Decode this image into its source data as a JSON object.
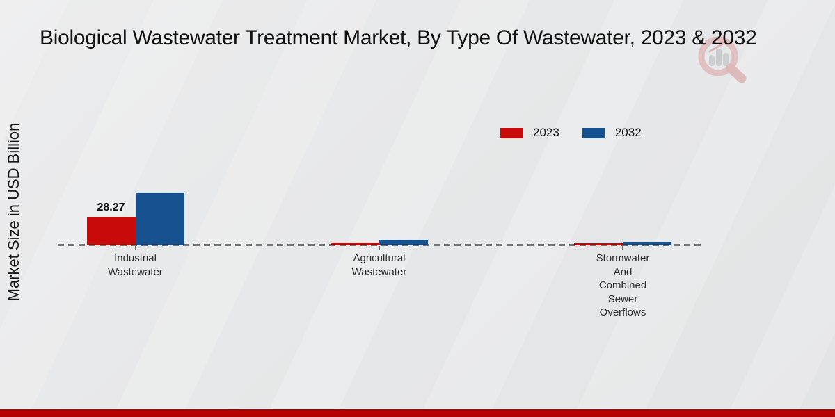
{
  "header": {
    "title": "Biological Wastewater Treatment Market, By Type Of Wastewater, 2023 & 2032"
  },
  "chart_data": {
    "type": "bar",
    "title": "Biological Wastewater Treatment Market, By Type Of Wastewater, 2023 & 2032",
    "xlabel": "",
    "ylabel": "Market Size in USD Billion",
    "categories": [
      "Industrial Wastewater",
      "Agricultural Wastewater",
      "Stormwater And Combined Sewer Overflows"
    ],
    "categories_display": [
      "Industrial\nWastewater",
      "Agricultural\nWastewater",
      "Stormwater\nAnd\nCombined\nSewer\nOverflows"
    ],
    "series": [
      {
        "name": "2023",
        "color": "#c80a0a",
        "values": [
          28.27,
          2.8,
          2.1
        ]
      },
      {
        "name": "2032",
        "color": "#15508f",
        "values": [
          52.0,
          5.5,
          3.4
        ]
      }
    ],
    "value_labels": [
      [
        "28.27",
        "",
        ""
      ],
      [
        "",
        "",
        ""
      ]
    ],
    "legend_position": "upper-right",
    "grid": false,
    "baseline_style": "dashed",
    "ylim": [
      0,
      55
    ]
  },
  "colors": {
    "accent_red": "#c80a0a",
    "accent_blue": "#15508f",
    "footer_band": "#b00202",
    "dashed_line": "#4a4a4a",
    "background": "#e8e9e9"
  },
  "icons": {
    "watermark": "magnifier-bar-chart-logo-icon"
  }
}
